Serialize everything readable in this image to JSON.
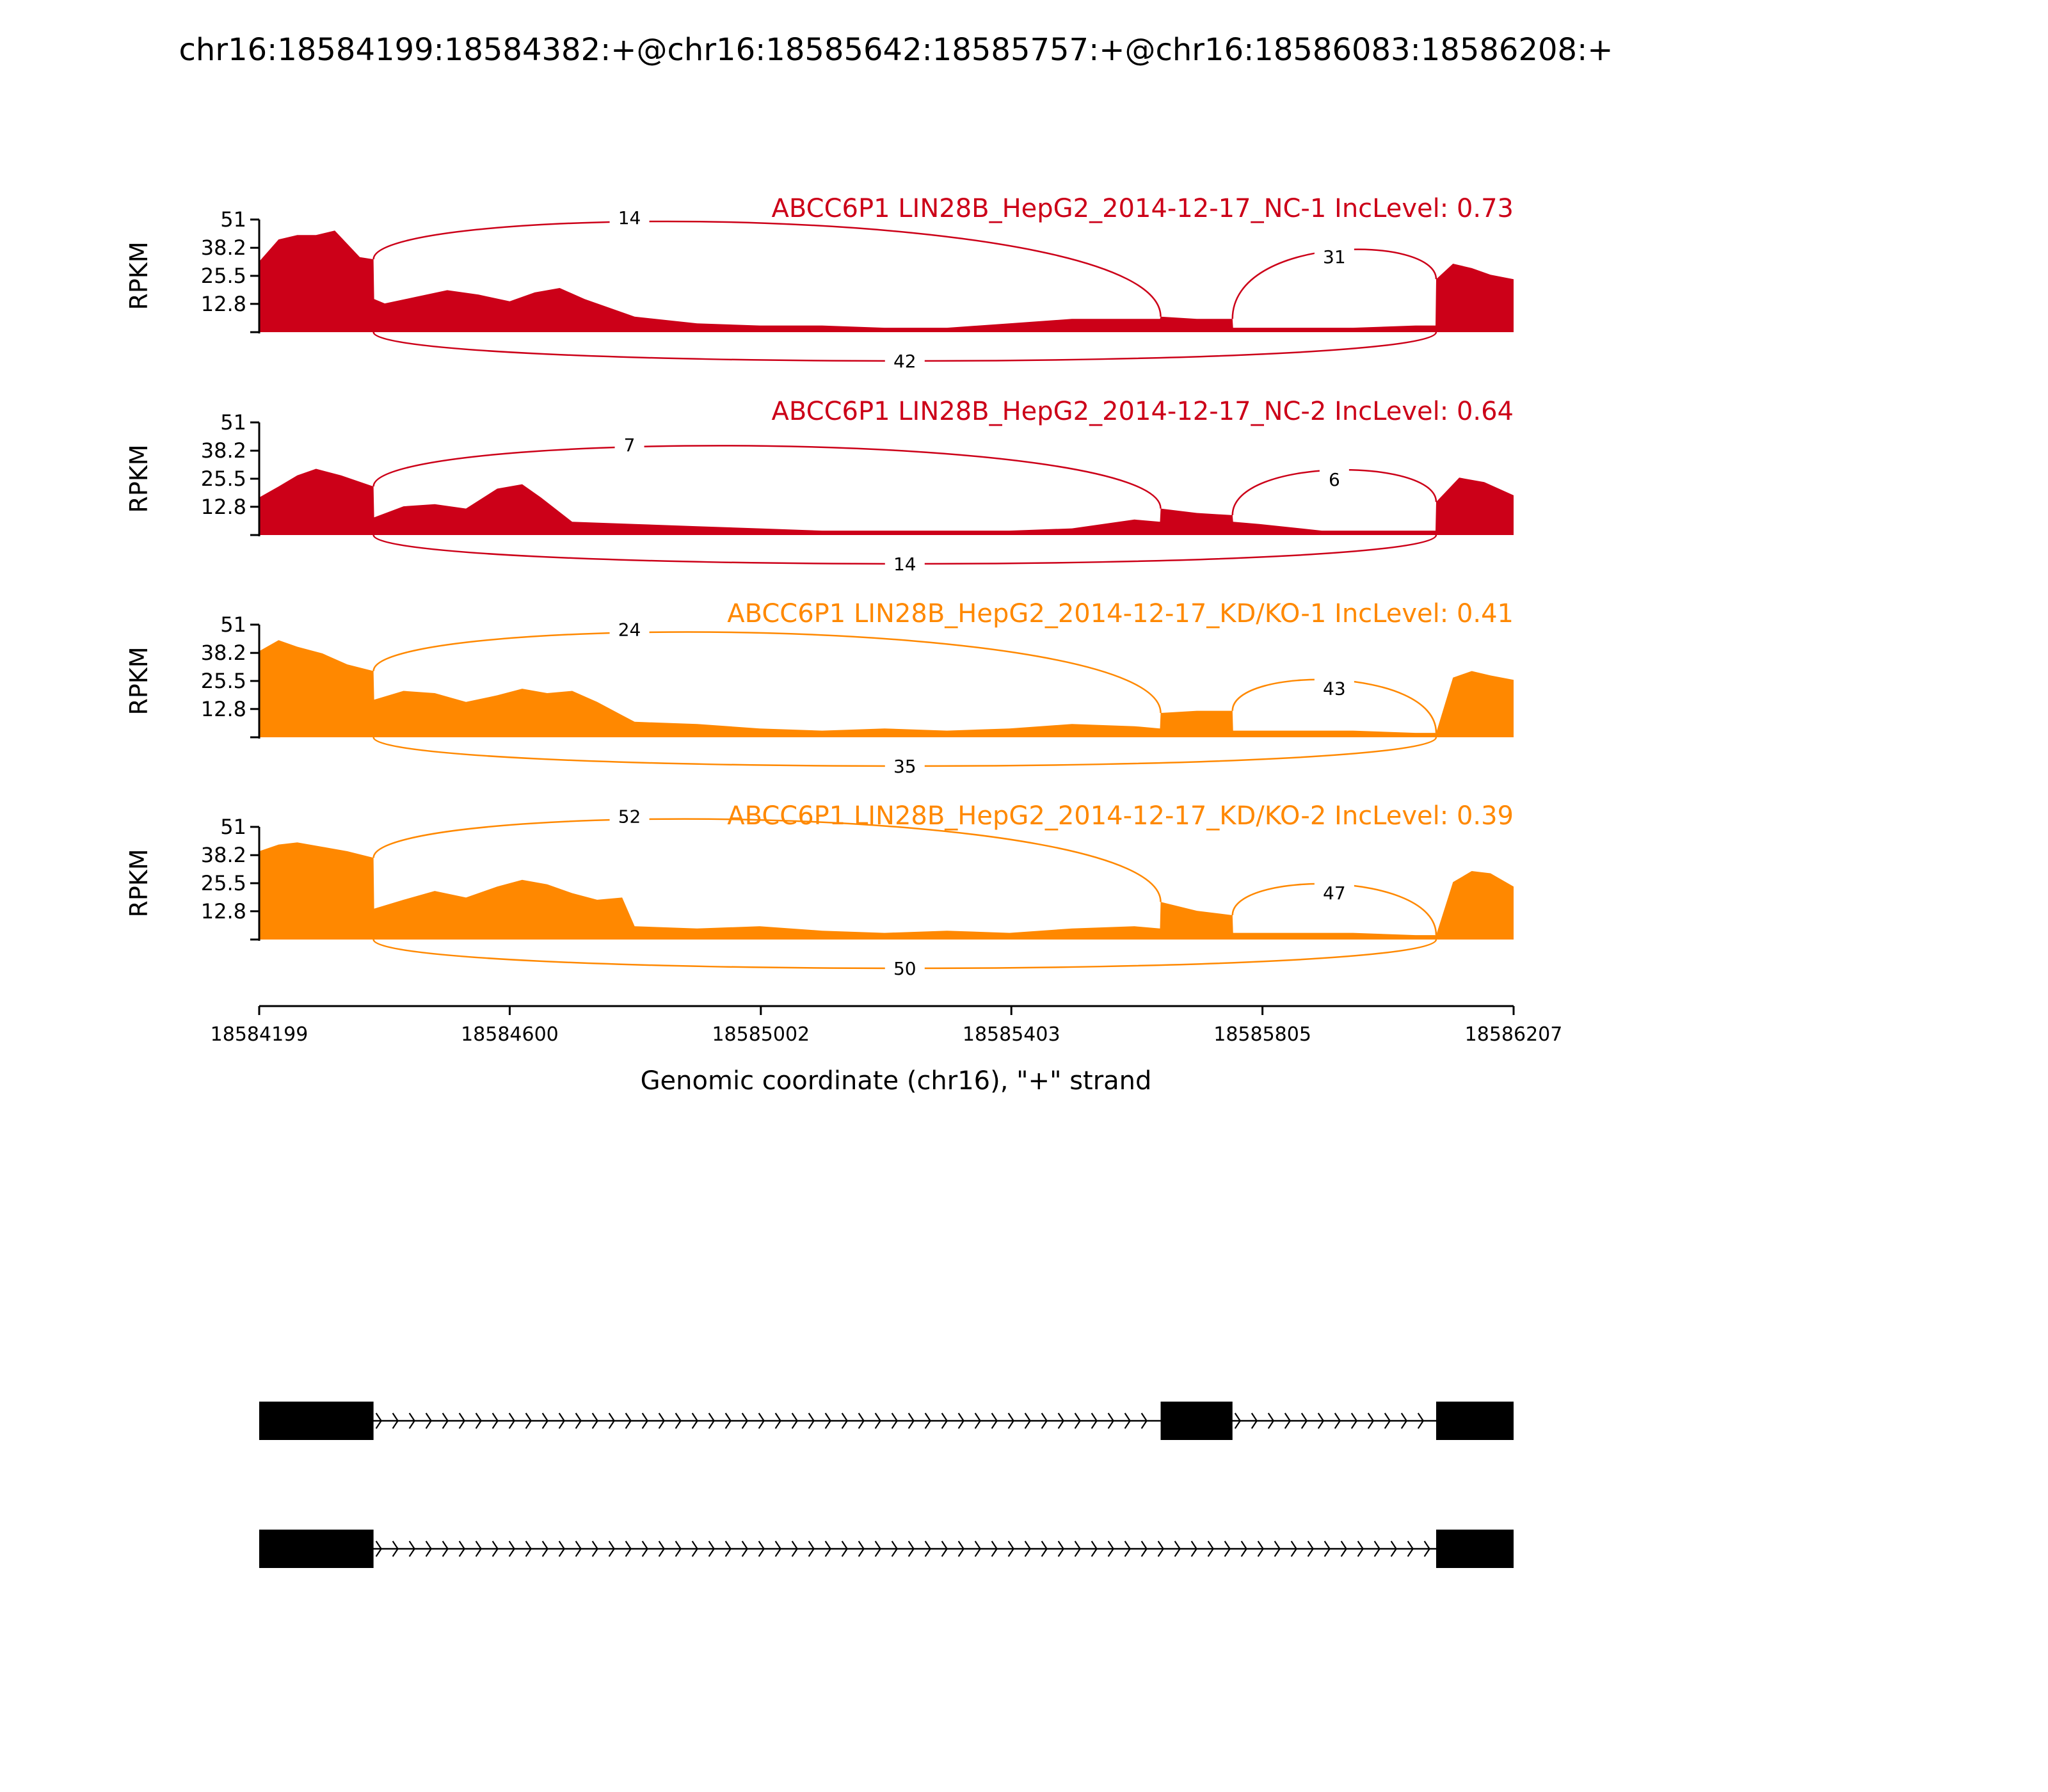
{
  "title": "chr16:18584199:18584382:+@chr16:18585642:18585757:+@chr16:18586083:18586208:+",
  "colors": {
    "NC": "#cc0018",
    "KD": "#ff8800"
  },
  "chart_data": {
    "type": "area",
    "title": "chr16:18584199:18584382:+@chr16:18585642:18585757:+@chr16:18586083:18586208:+",
    "xlabel": "Genomic coordinate (chr16), \"+\" strand",
    "ylabel": "RPKM",
    "xlim": [
      18584199,
      18586207
    ],
    "xticks": [
      "18584199",
      "18584600",
      "18585002",
      "18585403",
      "18585805",
      "18586207"
    ],
    "ylim": [
      0,
      51
    ],
    "yticks": [
      "51",
      "38.2",
      "25.5",
      "12.8"
    ],
    "exons": [
      [
        18584199,
        18584382
      ],
      [
        18585642,
        18585757
      ],
      [
        18586083,
        18586208
      ]
    ],
    "panels": [
      {
        "label": "ABCC6P1 LIN28B_HepG2_2014-12-17_NC-1 IncLevel: 0.73",
        "color": "NC",
        "x": [
          18584199,
          18584230,
          18584260,
          18584290,
          18584320,
          18584360,
          18584382,
          18584383,
          18584400,
          18584450,
          18584500,
          18584550,
          18584600,
          18584640,
          18584680,
          18584720,
          18584760,
          18584800,
          18584900,
          18585000,
          18585100,
          18585200,
          18585300,
          18585400,
          18585500,
          18585600,
          18585641,
          18585642,
          18585700,
          18585757,
          18585758,
          18585850,
          18585950,
          18586050,
          18586082,
          18586083,
          18586110,
          18586140,
          18586170,
          18586207
        ],
        "y": [
          32,
          42,
          44,
          44,
          46,
          34,
          33,
          15,
          13,
          16,
          19,
          17,
          14,
          18,
          20,
          15,
          11,
          7,
          4,
          3,
          3,
          2,
          2,
          4,
          6,
          6,
          6,
          7,
          6,
          6,
          2,
          2,
          2,
          3,
          3,
          24,
          31,
          29,
          26,
          24
        ],
        "junctions": [
          {
            "from": 18584382,
            "to": 18585642,
            "count": "14",
            "side": "above"
          },
          {
            "from": 18585757,
            "to": 18586083,
            "count": "31",
            "side": "above"
          },
          {
            "from": 18584382,
            "to": 18586083,
            "count": "42",
            "side": "below"
          }
        ]
      },
      {
        "label": "ABCC6P1 LIN28B_HepG2_2014-12-17_NC-2 IncLevel: 0.64",
        "color": "NC",
        "x": [
          18584199,
          18584230,
          18584260,
          18584290,
          18584330,
          18584382,
          18584383,
          18584430,
          18584480,
          18584530,
          18584580,
          18584620,
          18584650,
          18584700,
          18584800,
          18584900,
          18585000,
          18585100,
          18585200,
          18585300,
          18585400,
          18585500,
          18585600,
          18585641,
          18585642,
          18585700,
          18585757,
          18585758,
          18585800,
          18585900,
          18586000,
          18586082,
          18586083,
          18586120,
          18586160,
          18586207
        ],
        "y": [
          17,
          22,
          27,
          30,
          27,
          22,
          8,
          13,
          14,
          12,
          21,
          23,
          17,
          6,
          5,
          4,
          3,
          2,
          2,
          2,
          2,
          3,
          7,
          6,
          12,
          10,
          9,
          6,
          5,
          2,
          2,
          2,
          15,
          26,
          24,
          18
        ],
        "junctions": [
          {
            "from": 18584382,
            "to": 18585642,
            "count": "7",
            "side": "above"
          },
          {
            "from": 18585757,
            "to": 18586083,
            "count": "6",
            "side": "above"
          },
          {
            "from": 18584382,
            "to": 18586083,
            "count": "14",
            "side": "below"
          }
        ]
      },
      {
        "label": "ABCC6P1 LIN28B_HepG2_2014-12-17_KD/KO-1 IncLevel: 0.41",
        "color": "KD",
        "x": [
          18584199,
          18584230,
          18584260,
          18584300,
          18584340,
          18584382,
          18584383,
          18584430,
          18584480,
          18584530,
          18584580,
          18584620,
          18584660,
          18584700,
          18584740,
          18584780,
          18584800,
          18584900,
          18585000,
          18585100,
          18585200,
          18585300,
          18585400,
          18585500,
          18585600,
          18585641,
          18585642,
          18585700,
          18585757,
          18585758,
          18585850,
          18585950,
          18586050,
          18586082,
          18586083,
          18586110,
          18586140,
          18586170,
          18586207
        ],
        "y": [
          39,
          44,
          41,
          38,
          33,
          30,
          17,
          21,
          20,
          16,
          19,
          22,
          20,
          21,
          16,
          10,
          7,
          6,
          4,
          3,
          4,
          3,
          4,
          6,
          5,
          4,
          11,
          12,
          12,
          3,
          3,
          3,
          2,
          2,
          2,
          27,
          30,
          28,
          26
        ],
        "junctions": [
          {
            "from": 18584382,
            "to": 18585642,
            "count": "24",
            "side": "above"
          },
          {
            "from": 18585757,
            "to": 18586083,
            "count": "43",
            "side": "above"
          },
          {
            "from": 18584382,
            "to": 18586083,
            "count": "35",
            "side": "below"
          }
        ]
      },
      {
        "label": "ABCC6P1 LIN28B_HepG2_2014-12-17_KD/KO-2 IncLevel: 0.39",
        "color": "KD",
        "x": [
          18584199,
          18584230,
          18584260,
          18584300,
          18584340,
          18584382,
          18584383,
          18584430,
          18584480,
          18584530,
          18584580,
          18584620,
          18584660,
          18584700,
          18584740,
          18584780,
          18584800,
          18584900,
          18585000,
          18585100,
          18585200,
          18585300,
          18585400,
          18585500,
          18585600,
          18585641,
          18585642,
          18585700,
          18585757,
          18585758,
          18585850,
          18585950,
          18586050,
          18586082,
          18586083,
          18586110,
          18586140,
          18586170,
          18586207
        ],
        "y": [
          40,
          43,
          44,
          42,
          40,
          37,
          14,
          18,
          22,
          19,
          24,
          27,
          25,
          21,
          18,
          19,
          6,
          5,
          6,
          4,
          3,
          4,
          3,
          5,
          6,
          5,
          17,
          13,
          11,
          3,
          3,
          3,
          2,
          2,
          2,
          26,
          31,
          30,
          24
        ],
        "junctions": [
          {
            "from": 18584382,
            "to": 18585642,
            "count": "52",
            "side": "above"
          },
          {
            "from": 18585757,
            "to": 18586083,
            "count": "47",
            "side": "above"
          },
          {
            "from": 18584382,
            "to": 18586083,
            "count": "50",
            "side": "below"
          }
        ]
      }
    ],
    "isoforms": [
      [
        [
          18584199,
          18584382
        ],
        [
          18585642,
          18585757
        ],
        [
          18586083,
          18586207
        ]
      ],
      [
        [
          18584199,
          18584382
        ],
        [
          18586083,
          18586207
        ]
      ]
    ]
  }
}
